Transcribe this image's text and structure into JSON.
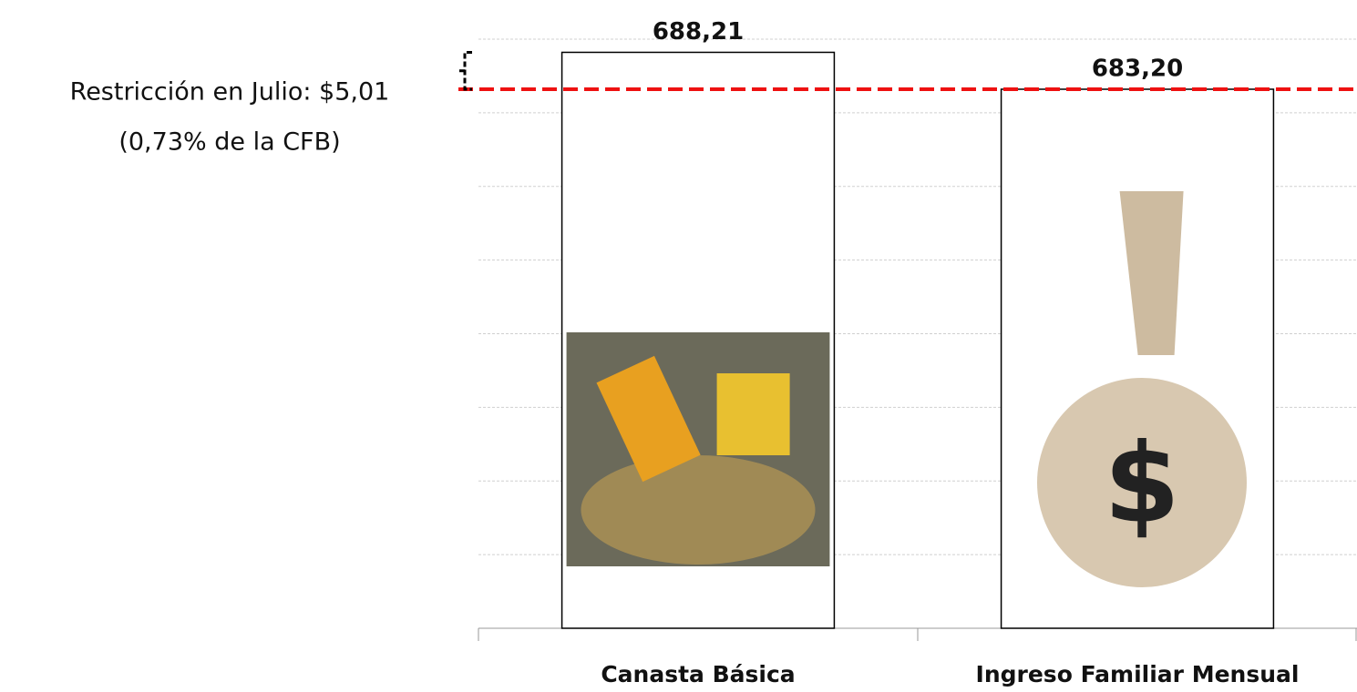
{
  "chart_data": {
    "type": "bar",
    "categories": [
      "Canasta Básica",
      "Ingreso Familiar Mensual"
    ],
    "values": [
      688.21,
      683.2
    ],
    "value_labels": [
      "688,21",
      "683,20"
    ],
    "color": "#ffffff",
    "ylim": [
      610,
      690
    ],
    "yticks": [
      620,
      630,
      640,
      650,
      660,
      670,
      680,
      690
    ],
    "grid": true,
    "reference_color": "#ee1111",
    "annotation": [
      "Restricción en Julio: $5,01",
      "(0,73% de la CFB)"
    ]
  }
}
